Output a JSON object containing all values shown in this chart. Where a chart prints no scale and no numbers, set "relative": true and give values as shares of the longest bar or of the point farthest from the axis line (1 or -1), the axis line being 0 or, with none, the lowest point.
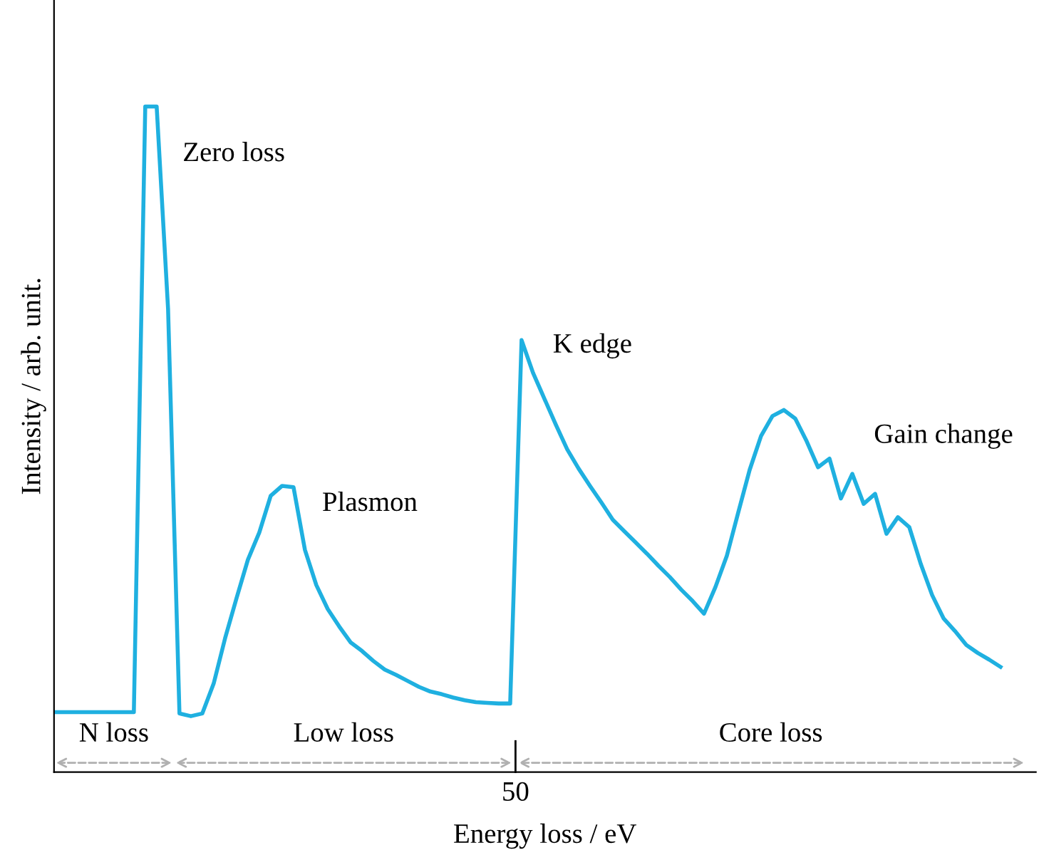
{
  "chart_data": {
    "type": "line",
    "relative": true,
    "xlabel": "Energy loss / eV",
    "ylabel": "Intensity / arb. unit.",
    "categories": [
      null,
      null,
      null,
      null,
      null,
      null,
      null,
      null,
      null,
      null,
      null,
      null,
      null,
      null,
      null,
      null,
      null,
      null,
      null,
      null,
      null,
      null,
      null,
      null,
      null,
      null,
      null,
      null,
      null,
      null,
      null,
      null,
      null,
      null,
      null,
      null,
      null,
      null,
      null,
      null,
      null,
      null,
      null,
      null,
      null,
      null,
      null,
      null,
      null,
      null,
      null,
      null,
      null,
      null,
      null,
      null,
      null,
      null,
      null,
      null,
      null,
      null,
      null,
      null,
      null,
      null,
      null,
      null,
      null,
      null,
      null,
      null,
      null,
      null,
      null,
      null,
      null,
      null,
      null,
      null,
      null,
      null,
      null,
      null
    ],
    "series": [
      {
        "color": "#1fb0e0",
        "values": [
          0.09,
          0.09,
          0.09,
          0.09,
          0.09,
          0.09,
          0.09,
          0.09,
          1.0,
          1.0,
          0.696,
          0.088,
          0.084,
          0.088,
          0.133,
          0.201,
          0.261,
          0.319,
          0.36,
          0.415,
          0.43,
          0.428,
          0.334,
          0.281,
          0.245,
          0.219,
          0.195,
          0.182,
          0.167,
          0.154,
          0.146,
          0.137,
          0.128,
          0.121,
          0.117,
          0.112,
          0.108,
          0.105,
          0.104,
          0.103,
          0.103,
          0.649,
          0.6,
          0.561,
          0.522,
          0.485,
          0.456,
          0.43,
          0.405,
          0.379,
          0.362,
          0.345,
          0.328,
          0.31,
          0.293,
          0.274,
          0.257,
          0.238,
          0.278,
          0.325,
          0.39,
          0.454,
          0.505,
          0.535,
          0.544,
          0.531,
          0.497,
          0.458,
          0.471,
          0.411,
          0.448,
          0.403,
          0.418,
          0.358,
          0.383,
          0.368,
          0.313,
          0.266,
          0.231,
          0.212,
          0.191,
          0.179,
          0.169,
          0.158
        ]
      }
    ],
    "annotations": [
      "Zero loss",
      "Plasmon",
      "K edge",
      "Gain change",
      "N loss",
      "Low loss",
      "Core loss",
      "50"
    ],
    "marker": "none",
    "line_style": "solid"
  }
}
